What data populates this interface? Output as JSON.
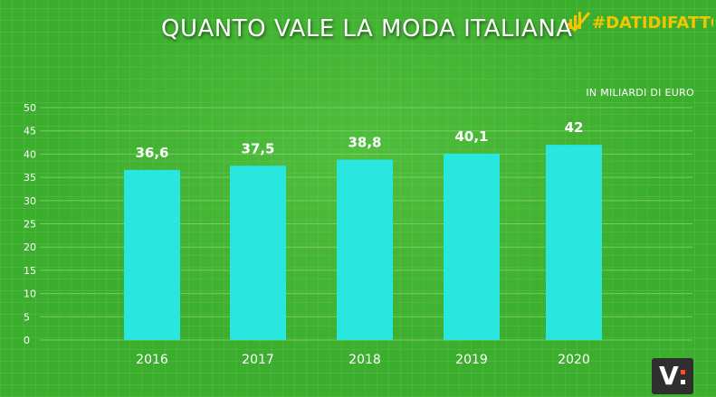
{
  "header": {
    "title": "QUANTO VALE LA MODA ITALIANA",
    "brand_hashtag": "#DATIDIFATTO",
    "brand_color": "#f5c400"
  },
  "unit_label": "IN MILIARDI DI EURO",
  "logo": {
    "text": "V:",
    "accent_color": "#ff4a2e"
  },
  "colors": {
    "bar": "#29e6de",
    "background": "#3cae2e",
    "grid": "#7fd06a"
  },
  "chart_data": {
    "type": "bar",
    "title": "QUANTO VALE LA MODA ITALIANA",
    "xlabel": "",
    "ylabel": "",
    "categories": [
      "2016",
      "2017",
      "2018",
      "2019",
      "2020"
    ],
    "values": [
      36.6,
      37.5,
      38.8,
      40.1,
      42
    ],
    "value_labels": [
      "36,6",
      "37,5",
      "38,8",
      "40,1",
      "42"
    ],
    "ylim": [
      0,
      50
    ],
    "yticks": [
      0,
      5,
      10,
      15,
      20,
      25,
      30,
      35,
      40,
      45,
      50
    ],
    "grid": true,
    "legend": "none"
  }
}
